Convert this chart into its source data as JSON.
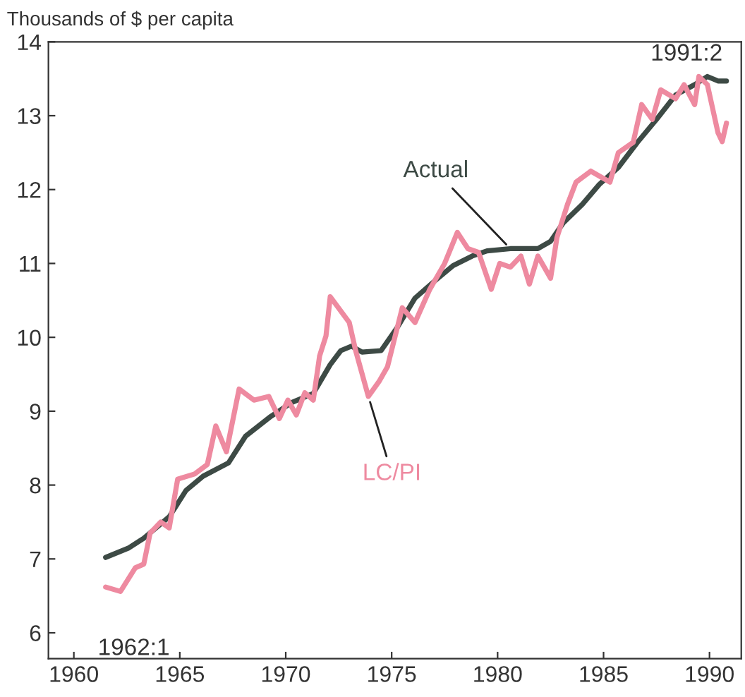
{
  "chart_data": {
    "type": "line",
    "ylabel": "Thousands of $ per capita",
    "xlim": [
      1958.8,
      1991.5
    ],
    "xticks": [
      1960,
      1965,
      1970,
      1975,
      1980,
      1985,
      1990
    ],
    "ylim": [
      5.65,
      14
    ],
    "yticks": [
      6,
      7,
      8,
      9,
      10,
      11,
      12,
      13,
      14
    ],
    "grid": false,
    "legend": false,
    "series": [
      {
        "name": "Actual",
        "color": "#3d4a45",
        "x": [
          1961.5,
          1962.6,
          1963.3,
          1964.5,
          1965.3,
          1966.1,
          1967.3,
          1968.1,
          1969.3,
          1970.3,
          1971.3,
          1972.1,
          1972.6,
          1973.1,
          1973.6,
          1974.5,
          1975.3,
          1976.1,
          1977.1,
          1977.9,
          1978.8,
          1979.5,
          1980.6,
          1981.9,
          1982.5,
          1983.1,
          1984.0,
          1984.8,
          1985.7,
          1986.6,
          1987.5,
          1988.4,
          1989.3,
          1989.9,
          1990.4,
          1990.8
        ],
        "values": [
          7.02,
          7.15,
          7.28,
          7.57,
          7.93,
          8.12,
          8.3,
          8.66,
          8.93,
          9.12,
          9.24,
          9.63,
          9.82,
          9.88,
          9.8,
          9.82,
          10.15,
          10.53,
          10.78,
          10.97,
          11.1,
          11.17,
          11.2,
          11.2,
          11.3,
          11.55,
          11.8,
          12.07,
          12.3,
          12.64,
          12.95,
          13.28,
          13.42,
          13.53,
          13.47,
          13.47
        ]
      },
      {
        "name": "LC/PI",
        "color": "#ee8aa0",
        "x": [
          1961.5,
          1962.2,
          1962.9,
          1963.3,
          1963.6,
          1964.1,
          1964.5,
          1964.9,
          1965.7,
          1966.3,
          1966.7,
          1967.2,
          1967.8,
          1968.5,
          1969.2,
          1969.7,
          1970.1,
          1970.5,
          1970.9,
          1971.3,
          1971.6,
          1971.9,
          1972.1,
          1973.0,
          1973.3,
          1973.9,
          1974.4,
          1974.8,
          1975.5,
          1976.1,
          1976.8,
          1977.5,
          1978.1,
          1978.6,
          1979.1,
          1979.7,
          1980.1,
          1980.6,
          1981.1,
          1981.5,
          1981.9,
          1982.5,
          1982.8,
          1983.3,
          1983.7,
          1984.4,
          1985.3,
          1985.7,
          1986.4,
          1986.8,
          1987.3,
          1987.7,
          1988.4,
          1988.8,
          1989.3,
          1989.5,
          1989.9,
          1990.4,
          1990.6,
          1990.8
        ],
        "values": [
          6.62,
          6.56,
          6.88,
          6.93,
          7.35,
          7.5,
          7.42,
          8.08,
          8.15,
          8.28,
          8.8,
          8.45,
          9.3,
          9.15,
          9.2,
          8.9,
          9.15,
          8.95,
          9.25,
          9.15,
          9.75,
          10.02,
          10.55,
          10.2,
          9.82,
          9.2,
          9.4,
          9.6,
          10.4,
          10.2,
          10.65,
          11.0,
          11.42,
          11.2,
          11.15,
          10.65,
          11.0,
          10.95,
          11.1,
          10.72,
          11.1,
          10.8,
          11.35,
          11.8,
          12.1,
          12.25,
          12.1,
          12.5,
          12.64,
          13.15,
          12.95,
          13.35,
          13.23,
          13.42,
          13.15,
          13.53,
          13.42,
          12.77,
          12.65,
          12.9
        ]
      }
    ],
    "annotations": [
      {
        "text": "1962:1",
        "x": 1961.5,
        "y": 6.62
      },
      {
        "text": "1991:2",
        "x": 1990.8,
        "y": 13.47
      }
    ]
  }
}
